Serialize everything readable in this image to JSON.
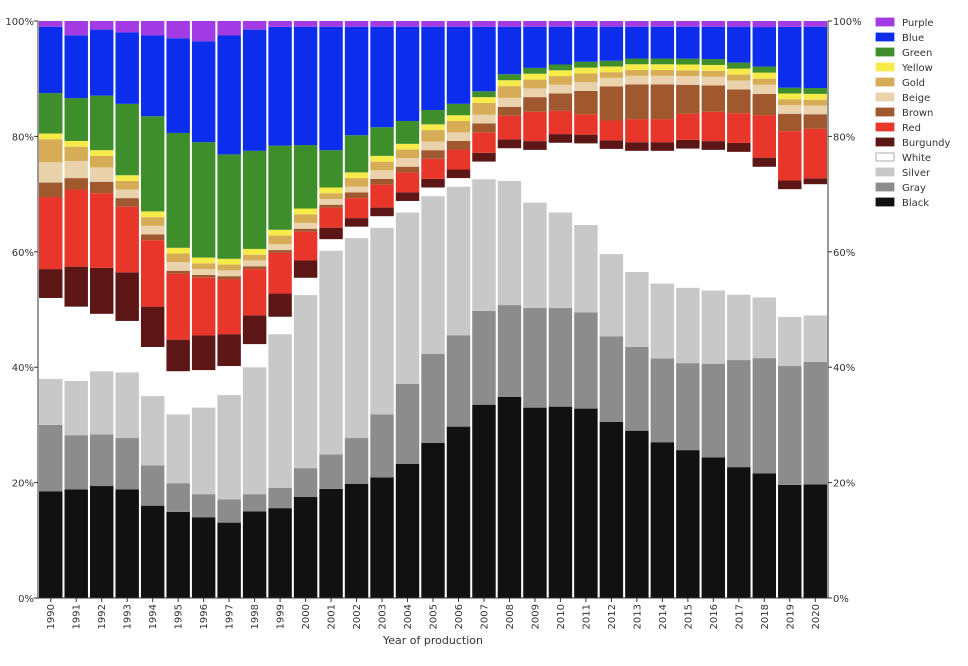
{
  "chart_data": {
    "type": "bar",
    "stacked": true,
    "normalized": true,
    "xlabel": "Year of production",
    "ylabel": "",
    "ylim": [
      0,
      100
    ],
    "y_ticks": [
      "0%",
      "20%",
      "40%",
      "60%",
      "80%",
      "100%"
    ],
    "secondary_y_axis": true,
    "grid": false,
    "legend_position": "top-right",
    "legend_order": [
      "Purple",
      "Blue",
      "Green",
      "Yellow",
      "Gold",
      "Beige",
      "Brown",
      "Red",
      "Burgundy",
      "White",
      "Silver",
      "Gray",
      "Black"
    ],
    "categories": [
      "1990",
      "1991",
      "1992",
      "1993",
      "1994",
      "1995",
      "1996",
      "1997",
      "1998",
      "1999",
      "2000",
      "2001",
      "2002",
      "2003",
      "2004",
      "2005",
      "2006",
      "2007",
      "2008",
      "2009",
      "2010",
      "2011",
      "2012",
      "2013",
      "2014",
      "2015",
      "2016",
      "2017",
      "2018",
      "2019",
      "2020"
    ],
    "series": [
      {
        "name": "Black",
        "color": "#111111",
        "values": [
          18.5,
          19,
          19.5,
          19,
          16,
          15,
          14,
          13,
          15,
          15.5,
          17.5,
          19,
          20,
          21,
          23.5,
          27,
          30,
          33,
          34,
          32.5,
          33,
          32.5,
          31,
          29,
          27,
          25.5,
          24,
          22,
          20.5,
          19.5,
          19.5
        ]
      },
      {
        "name": "Gray",
        "color": "#8c8c8c",
        "values": [
          11.5,
          9.5,
          9,
          9,
          7,
          5,
          4,
          4,
          3,
          3.5,
          5,
          6,
          8,
          11,
          14,
          15.5,
          16,
          16,
          15.5,
          17,
          17,
          16.5,
          15,
          14.5,
          14.5,
          15,
          16,
          18,
          19,
          20.5,
          21
        ]
      },
      {
        "name": "Silver",
        "color": "#c8c8c8",
        "values": [
          8,
          9.5,
          11,
          11.5,
          12,
          12,
          15,
          18,
          22,
          26.5,
          30,
          35.5,
          35,
          32.5,
          30,
          27.5,
          26,
          22.5,
          21,
          18,
          16.5,
          15,
          14.5,
          13,
          13,
          13,
          12.5,
          11,
          10,
          8.5,
          8
        ]
      },
      {
        "name": "White",
        "color": "#ffffff",
        "values": [
          14,
          13,
          10,
          9,
          8.5,
          7.5,
          6.5,
          5,
          4,
          3,
          3,
          2,
          2,
          2,
          2,
          1.5,
          1.5,
          3,
          5.5,
          9,
          12,
          14,
          18.5,
          21,
          23,
          24,
          24,
          24,
          21.5,
          22,
          22.5
        ]
      },
      {
        "name": "Burgundy",
        "color": "#5c1616",
        "values": [
          5,
          7,
          8,
          8.5,
          7,
          5.5,
          6,
          5.5,
          5,
          4,
          3,
          2,
          1.5,
          1.5,
          1.5,
          1.5,
          1.5,
          1.5,
          1.5,
          1.5,
          1.5,
          1.5,
          1.5,
          1.5,
          1.5,
          1.5,
          1.5,
          1.5,
          1.5,
          1.5,
          1
        ]
      },
      {
        "name": "Red",
        "color": "#e8372a",
        "values": [
          12.5,
          13.5,
          13,
          11.5,
          11.5,
          11.5,
          10,
          9.5,
          8,
          7,
          5,
          3.5,
          3.5,
          4,
          3.5,
          3.5,
          3.5,
          3.5,
          4,
          5,
          4,
          3.5,
          3.5,
          4,
          4,
          4.5,
          5,
          5,
          7,
          8.5,
          8.5
        ]
      },
      {
        "name": "Brown",
        "color": "#a0582e",
        "values": [
          2.5,
          2,
          2,
          1.5,
          1,
          0.5,
          0.5,
          0.5,
          0.5,
          0.5,
          0.5,
          0.5,
          1,
          1,
          1,
          1.5,
          1.5,
          1.5,
          1.5,
          2.5,
          3,
          4,
          6,
          6,
          6,
          5,
          4.5,
          4,
          3.5,
          3,
          2.5
        ]
      },
      {
        "name": "Beige",
        "color": "#ead2ad",
        "values": [
          3.5,
          3,
          2.5,
          1.5,
          1.5,
          1.5,
          1,
          1,
          1,
          1,
          1,
          1,
          1,
          1.5,
          1.5,
          1.5,
          1.5,
          1.5,
          1.5,
          1.5,
          1.5,
          1.5,
          1.5,
          1.5,
          1.5,
          1.5,
          1.5,
          1.5,
          1.5,
          1.5,
          1.5
        ]
      },
      {
        "name": "Gold",
        "color": "#d6ad56",
        "values": [
          4,
          2.5,
          2,
          1.5,
          1.5,
          1.5,
          1,
          1,
          1,
          1.5,
          1.5,
          1,
          1.5,
          1.5,
          1.5,
          2,
          2,
          2,
          2,
          1.5,
          1.5,
          1.5,
          1,
          1,
          1,
          1,
          1,
          1,
          1,
          1,
          1
        ]
      },
      {
        "name": "Yellow",
        "color": "#f7eb4a",
        "values": [
          1,
          1,
          1,
          1,
          1,
          1,
          1,
          1,
          1,
          1,
          1,
          1,
          1,
          1,
          1,
          1,
          1,
          1,
          1,
          1,
          1,
          1,
          1,
          1,
          1,
          1,
          1,
          1,
          1,
          1,
          1
        ]
      },
      {
        "name": "Green",
        "color": "#3e8f2b",
        "values": [
          7,
          7.5,
          9.5,
          12.5,
          16.5,
          20,
          20,
          18,
          17,
          14.5,
          11,
          6.5,
          6.5,
          5,
          4,
          2.5,
          2,
          1,
          1,
          1,
          1,
          1,
          1,
          1,
          1,
          1,
          1,
          1,
          1,
          1,
          1
        ]
      },
      {
        "name": "Blue",
        "color": "#0c2eec",
        "values": [
          11.5,
          11,
          11.5,
          12.5,
          14,
          16.5,
          17.5,
          20.5,
          21,
          20.5,
          20.5,
          21.5,
          19,
          17.5,
          16.5,
          14.5,
          13.5,
          11,
          8,
          7,
          6.5,
          6,
          6,
          5.5,
          5.5,
          5.5,
          5.5,
          6,
          6.5,
          10.5,
          10.5
        ]
      },
      {
        "name": "Purple",
        "color": "#a23be4",
        "values": [
          1,
          2.5,
          1.5,
          2,
          2.5,
          3,
          3.5,
          2.5,
          1.5,
          1,
          1,
          1,
          1,
          1,
          1,
          1,
          1,
          1,
          1,
          1,
          1,
          1,
          1,
          1,
          1,
          1,
          1,
          1,
          1,
          1,
          1
        ]
      }
    ]
  }
}
